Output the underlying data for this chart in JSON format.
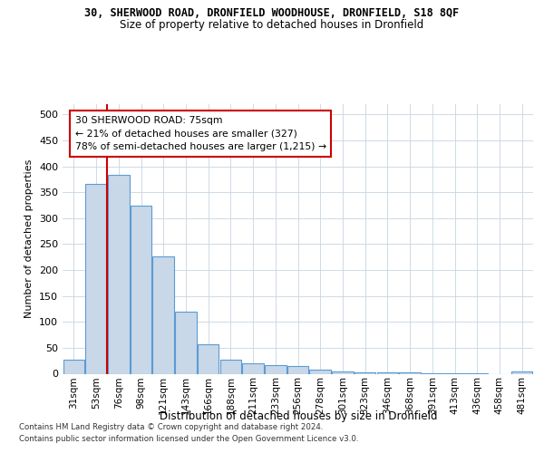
{
  "title_top": "30, SHERWOOD ROAD, DRONFIELD WOODHOUSE, DRONFIELD, S18 8QF",
  "title_main": "Size of property relative to detached houses in Dronfield",
  "xlabel": "Distribution of detached houses by size in Dronfield",
  "ylabel": "Number of detached properties",
  "footer1": "Contains HM Land Registry data © Crown copyright and database right 2024.",
  "footer2": "Contains public sector information licensed under the Open Government Licence v3.0.",
  "annotation_line1": "30 SHERWOOD ROAD: 75sqm",
  "annotation_line2": "← 21% of detached houses are smaller (327)",
  "annotation_line3": "78% of semi-detached houses are larger (1,215) →",
  "bar_color": "#c8d8e8",
  "bar_edge_color": "#5b9bd5",
  "line_color": "#cc0000",
  "bins": [
    "31sqm",
    "53sqm",
    "76sqm",
    "98sqm",
    "121sqm",
    "143sqm",
    "166sqm",
    "188sqm",
    "211sqm",
    "233sqm",
    "256sqm",
    "278sqm",
    "301sqm",
    "323sqm",
    "346sqm",
    "368sqm",
    "391sqm",
    "413sqm",
    "436sqm",
    "458sqm",
    "481sqm"
  ],
  "values": [
    27,
    367,
    383,
    325,
    227,
    120,
    57,
    27,
    20,
    17,
    14,
    7,
    5,
    3,
    2,
    2,
    1,
    1,
    1,
    0,
    5
  ],
  "ylim": [
    0,
    520
  ],
  "yticks": [
    0,
    50,
    100,
    150,
    200,
    250,
    300,
    350,
    400,
    450,
    500
  ],
  "grid_color": "#c8d4e0",
  "line_x_index": 2
}
